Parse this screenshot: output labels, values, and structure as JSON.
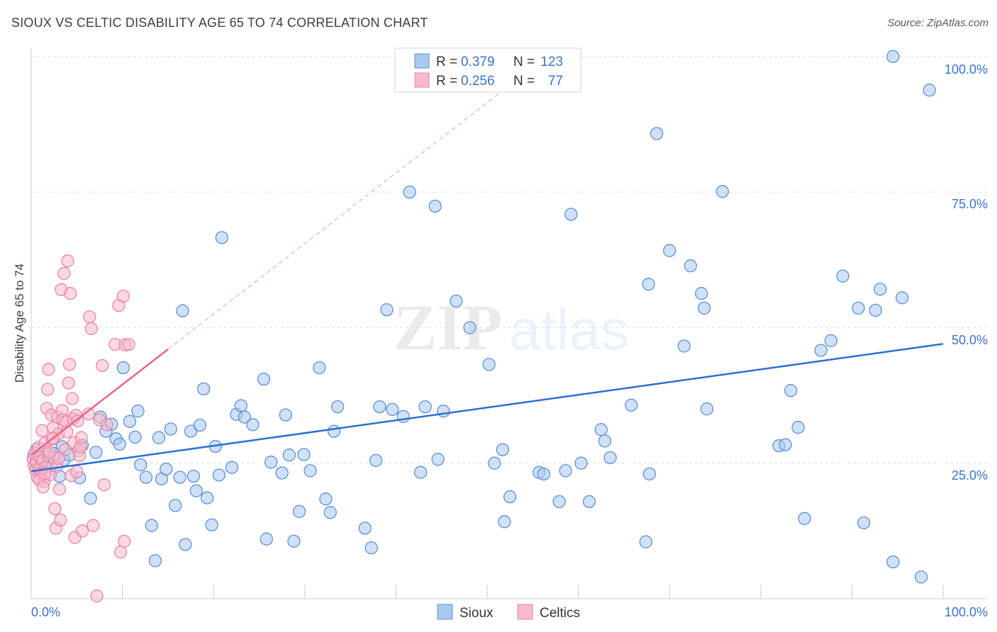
{
  "title": "SIOUX VS CELTIC DISABILITY AGE 65 TO 74 CORRELATION CHART",
  "source": "Source: ZipAtlas.com",
  "watermark": {
    "part1": "ZIP",
    "part2": "atlas"
  },
  "colors": {
    "sioux_fill": "#a9c8f0",
    "sioux_stroke": "#5b90d8",
    "sioux_line": "#2a6fd1",
    "celtics_fill": "#f7b9cb",
    "celtics_stroke": "#e985a4",
    "celtics_line": "#e8648c",
    "axis_value_text": "#3b73c8",
    "grid": "#dddddd"
  },
  "legend": {
    "rows": [
      {
        "r_label": "R =",
        "r_value": "0.379",
        "n_label": "N =",
        "n_value": "123"
      },
      {
        "r_label": "R =",
        "r_value": "0.256",
        "n_label": "N =",
        "n_value": "77"
      }
    ],
    "bottom": [
      "Sioux",
      "Celtics"
    ]
  },
  "chart_data": {
    "type": "scatter",
    "ylabel": "Disability Age 65 to 74",
    "xlim": [
      0,
      100
    ],
    "ylim": [
      0,
      102
    ],
    "x_tick_labels": [
      "0.0%",
      "100.0%"
    ],
    "y_tick_labels": [
      "25.0%",
      "50.0%",
      "75.0%",
      "100.0%"
    ],
    "y_ticks": [
      25,
      50,
      75,
      100
    ],
    "series": [
      {
        "name": "Sioux",
        "r": 0.379,
        "n": 123,
        "trend": {
          "x": [
            0,
            100
          ],
          "y": [
            23.5,
            47.0
          ],
          "style": "solid"
        },
        "points": [
          [
            0.3,
            26.5
          ],
          [
            0.5,
            25.0
          ],
          [
            0.6,
            27.5
          ],
          [
            0.8,
            24.2
          ],
          [
            1.0,
            26.0
          ],
          [
            1.2,
            23.8
          ],
          [
            1.5,
            27.2
          ],
          [
            1.8,
            25.3
          ],
          [
            2.2,
            24.5
          ],
          [
            2.6,
            26.8
          ],
          [
            3.1,
            22.6
          ],
          [
            3.4,
            28.0
          ],
          [
            3.6,
            25.6
          ],
          [
            4.2,
            26.5
          ],
          [
            5.3,
            22.3
          ],
          [
            5.6,
            28.3
          ],
          [
            6.5,
            18.5
          ],
          [
            7.1,
            27.0
          ],
          [
            7.6,
            33.5
          ],
          [
            8.2,
            30.9
          ],
          [
            8.8,
            32.2
          ],
          [
            9.3,
            29.5
          ],
          [
            9.7,
            28.5
          ],
          [
            10.1,
            42.6
          ],
          [
            10.8,
            32.7
          ],
          [
            11.4,
            29.8
          ],
          [
            11.7,
            34.6
          ],
          [
            12.0,
            24.7
          ],
          [
            12.6,
            22.4
          ],
          [
            13.2,
            13.5
          ],
          [
            13.6,
            7.0
          ],
          [
            14.0,
            29.7
          ],
          [
            14.3,
            22.1
          ],
          [
            14.8,
            23.9
          ],
          [
            15.3,
            31.3
          ],
          [
            15.8,
            17.2
          ],
          [
            16.3,
            22.4
          ],
          [
            16.6,
            53.1
          ],
          [
            16.9,
            10.0
          ],
          [
            17.5,
            30.9
          ],
          [
            17.8,
            22.6
          ],
          [
            18.1,
            19.9
          ],
          [
            18.5,
            32.0
          ],
          [
            18.9,
            38.7
          ],
          [
            19.3,
            18.6
          ],
          [
            19.8,
            13.6
          ],
          [
            20.2,
            28.1
          ],
          [
            20.6,
            22.8
          ],
          [
            20.9,
            66.6
          ],
          [
            22.0,
            24.2
          ],
          [
            22.5,
            34.0
          ],
          [
            23.0,
            35.6
          ],
          [
            23.4,
            33.5
          ],
          [
            24.3,
            32.1
          ],
          [
            25.5,
            40.5
          ],
          [
            25.8,
            11.0
          ],
          [
            26.3,
            25.2
          ],
          [
            27.5,
            23.2
          ],
          [
            27.9,
            33.9
          ],
          [
            28.3,
            26.5
          ],
          [
            28.8,
            10.6
          ],
          [
            29.4,
            16.1
          ],
          [
            29.9,
            26.6
          ],
          [
            30.6,
            23.6
          ],
          [
            31.6,
            42.6
          ],
          [
            32.3,
            18.4
          ],
          [
            32.8,
            15.9
          ],
          [
            33.2,
            30.9
          ],
          [
            33.6,
            35.4
          ],
          [
            36.6,
            13.0
          ],
          [
            37.3,
            9.4
          ],
          [
            37.8,
            25.5
          ],
          [
            38.2,
            35.4
          ],
          [
            39.0,
            53.3
          ],
          [
            39.6,
            34.9
          ],
          [
            40.8,
            33.6
          ],
          [
            41.5,
            75.0
          ],
          [
            42.7,
            23.3
          ],
          [
            43.2,
            35.4
          ],
          [
            44.3,
            72.4
          ],
          [
            44.6,
            25.7
          ],
          [
            45.2,
            34.6
          ],
          [
            46.6,
            54.9
          ],
          [
            48.1,
            50.0
          ],
          [
            50.2,
            43.2
          ],
          [
            50.8,
            25.0
          ],
          [
            51.7,
            27.5
          ],
          [
            51.9,
            14.2
          ],
          [
            52.5,
            18.8
          ],
          [
            55.7,
            23.3
          ],
          [
            56.2,
            23.0
          ],
          [
            57.9,
            17.9
          ],
          [
            58.6,
            23.6
          ],
          [
            59.2,
            70.9
          ],
          [
            60.3,
            25.0
          ],
          [
            61.2,
            17.9
          ],
          [
            62.5,
            31.2
          ],
          [
            62.9,
            29.1
          ],
          [
            63.5,
            26.0
          ],
          [
            65.8,
            35.7
          ],
          [
            67.4,
            10.5
          ],
          [
            67.7,
            58.0
          ],
          [
            67.8,
            23.0
          ],
          [
            68.6,
            85.8
          ],
          [
            70.0,
            64.2
          ],
          [
            71.6,
            46.6
          ],
          [
            72.3,
            61.4
          ],
          [
            73.5,
            56.3
          ],
          [
            73.8,
            53.6
          ],
          [
            74.1,
            35.0
          ],
          [
            75.8,
            75.1
          ],
          [
            82.0,
            28.2
          ],
          [
            82.7,
            28.4
          ],
          [
            83.3,
            38.4
          ],
          [
            84.1,
            31.6
          ],
          [
            84.8,
            14.8
          ],
          [
            86.6,
            45.8
          ],
          [
            87.7,
            47.6
          ],
          [
            89.0,
            59.5
          ],
          [
            90.7,
            53.6
          ],
          [
            91.3,
            14.0
          ],
          [
            92.6,
            53.2
          ],
          [
            93.1,
            57.1
          ],
          [
            94.5,
            6.8
          ],
          [
            94.5,
            100.0
          ],
          [
            95.5,
            55.5
          ],
          [
            97.6,
            4.0
          ],
          [
            98.5,
            93.8
          ]
        ]
      },
      {
        "name": "Celtics",
        "r": 0.256,
        "n": 77,
        "trend": {
          "x": [
            0,
            15
          ],
          "y": [
            26.5,
            46.0
          ],
          "style": "solid",
          "extended": {
            "x": [
              15,
              55
            ],
            "y": [
              46.0,
              98.0
            ],
            "style": "dashed"
          }
        },
        "points": [
          [
            0.2,
            25.8
          ],
          [
            0.3,
            24.6
          ],
          [
            0.4,
            26.9
          ],
          [
            0.5,
            23.7
          ],
          [
            0.6,
            25.2
          ],
          [
            0.7,
            22.4
          ],
          [
            0.8,
            27.9
          ],
          [
            0.9,
            24.0
          ],
          [
            1.0,
            26.1
          ],
          [
            1.1,
            23.1
          ],
          [
            1.2,
            31.0
          ],
          [
            1.3,
            25.5
          ],
          [
            1.4,
            21.6
          ],
          [
            1.5,
            28.7
          ],
          [
            1.6,
            24.3
          ],
          [
            1.7,
            35.1
          ],
          [
            1.8,
            38.6
          ],
          [
            1.9,
            42.3
          ],
          [
            2.0,
            26.2
          ],
          [
            2.1,
            22.9
          ],
          [
            2.2,
            33.9
          ],
          [
            2.3,
            29.4
          ],
          [
            2.4,
            31.5
          ],
          [
            2.5,
            25.9
          ],
          [
            2.6,
            16.6
          ],
          [
            2.7,
            13.0
          ],
          [
            2.8,
            24.4
          ],
          [
            2.9,
            33.5
          ],
          [
            3.0,
            30.4
          ],
          [
            3.1,
            20.2
          ],
          [
            3.2,
            14.5
          ],
          [
            3.3,
            57.0
          ],
          [
            3.4,
            34.7
          ],
          [
            3.5,
            33.0
          ],
          [
            3.6,
            60.0
          ],
          [
            3.7,
            27.5
          ],
          [
            3.8,
            32.6
          ],
          [
            3.9,
            30.8
          ],
          [
            4.0,
            62.3
          ],
          [
            4.1,
            39.8
          ],
          [
            4.2,
            43.2
          ],
          [
            4.3,
            56.3
          ],
          [
            4.4,
            22.7
          ],
          [
            4.5,
            36.9
          ],
          [
            4.6,
            33.2
          ],
          [
            4.7,
            28.8
          ],
          [
            4.8,
            11.3
          ],
          [
            4.9,
            33.8
          ],
          [
            5.0,
            23.4
          ],
          [
            5.1,
            32.8
          ],
          [
            5.2,
            27.3
          ],
          [
            5.3,
            26.4
          ],
          [
            5.4,
            28.0
          ],
          [
            5.5,
            29.7
          ],
          [
            5.6,
            12.5
          ],
          [
            6.3,
            34.1
          ],
          [
            6.4,
            52.0
          ],
          [
            6.6,
            49.8
          ],
          [
            6.8,
            13.5
          ],
          [
            7.2,
            0.5
          ],
          [
            7.5,
            33.0
          ],
          [
            7.8,
            43.0
          ],
          [
            8.0,
            21.0
          ],
          [
            8.3,
            32.1
          ],
          [
            9.2,
            46.9
          ],
          [
            9.6,
            54.1
          ],
          [
            9.8,
            8.6
          ],
          [
            10.1,
            55.8
          ],
          [
            10.3,
            46.8
          ],
          [
            10.7,
            46.9
          ],
          [
            0.9,
            21.9
          ],
          [
            1.3,
            20.6
          ],
          [
            1.5,
            23.1
          ],
          [
            2.0,
            27.0
          ],
          [
            2.4,
            29.6
          ],
          [
            3.0,
            25.9
          ],
          [
            10.2,
            10.6
          ]
        ]
      }
    ]
  }
}
